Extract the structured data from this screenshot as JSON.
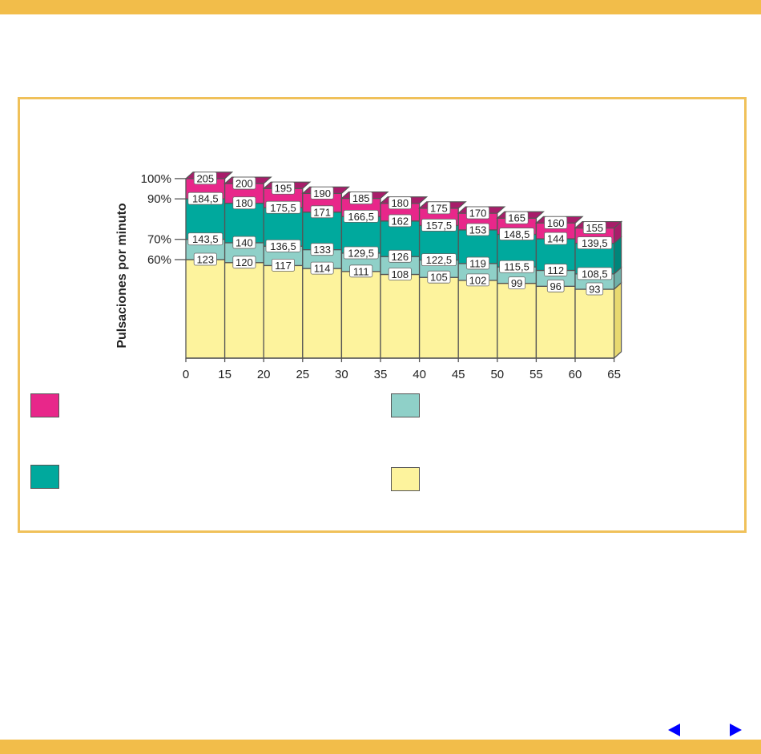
{
  "colors": {
    "accent_bar": "#f2bd4a",
    "frame_border": "#f0c15a",
    "nav_arrow": "#0000ff",
    "zone_top": "#e8278a",
    "zone_upper": "#00a99d",
    "zone_lower": "#8fd0c8",
    "zone_base": "#fdf39d",
    "outline": "#555555"
  },
  "nav": {
    "prev_icon": "triangle-left-icon",
    "next_icon": "triangle-right-icon"
  },
  "legend": [
    {
      "color": "#e8278a"
    },
    {
      "color": "#00a99d"
    },
    {
      "color": "#8fd0c8"
    },
    {
      "color": "#fdf39d"
    }
  ],
  "chart_data": {
    "type": "bar",
    "stacked": true,
    "three_d": true,
    "ylabel": "Pulsaciones por minuto",
    "y_tick_labels": [
      "100%",
      "90%",
      "70%",
      "60%"
    ],
    "x_ticks": [
      "0",
      "15",
      "20",
      "25",
      "30",
      "35",
      "40",
      "45",
      "50",
      "55",
      "60",
      "65"
    ],
    "categories": [
      "15",
      "20",
      "25",
      "30",
      "35",
      "40",
      "45",
      "50",
      "55",
      "60",
      "65"
    ],
    "boundaries": [
      {
        "name": "100%",
        "values": [
          "205",
          "200",
          "195",
          "190",
          "185",
          "180",
          "175",
          "170",
          "165",
          "160",
          "155"
        ]
      },
      {
        "name": "90%",
        "values": [
          "184,5",
          "180",
          "175,5",
          "171",
          "166,5",
          "162",
          "157,5",
          "153",
          "148,5",
          "144",
          "139,5"
        ]
      },
      {
        "name": "70%",
        "values": [
          "143,5",
          "140",
          "136,5",
          "133",
          "129,5",
          "126",
          "122,5",
          "119",
          "115,5",
          "112",
          "108,5"
        ]
      },
      {
        "name": "60%",
        "values": [
          "123",
          "120",
          "117",
          "114",
          "111",
          "108",
          "105",
          "102",
          "99",
          "96",
          "93"
        ]
      }
    ],
    "grid": false,
    "legend": "bottom"
  }
}
